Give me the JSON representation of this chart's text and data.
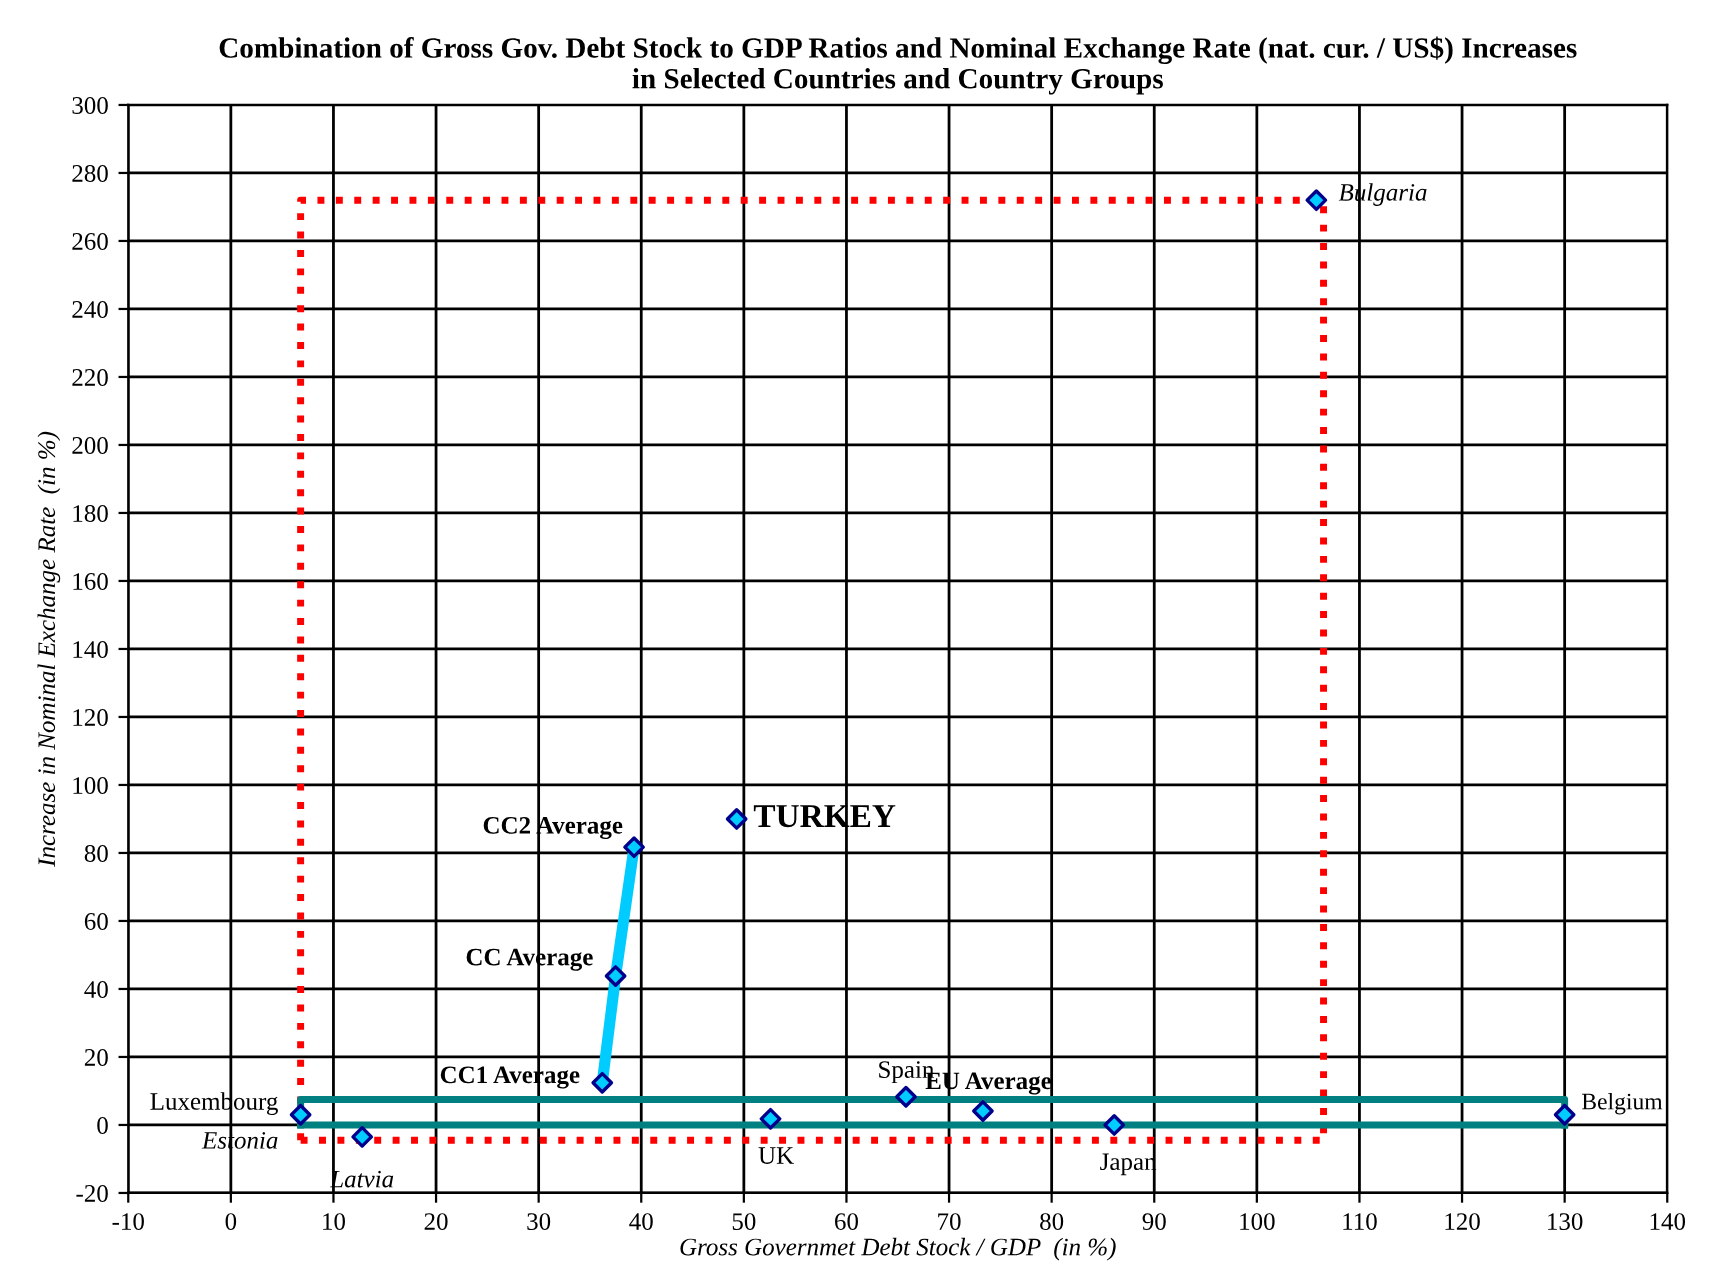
{
  "chart_data": {
    "type": "scatter",
    "title": "Combination of Gross Gov. Debt Stock to GDP Ratios and Nominal Exchange Rate (nat. cur. / US$) Increases\nin Selected Countries and Country Groups",
    "xlabel": "Gross Governmet Debt Stock / GDP  (in %)",
    "ylabel": "Increase in Nominal Exchange Rate  (in %)",
    "xlim": [
      -10,
      140
    ],
    "xticks": [
      -10,
      0,
      10,
      20,
      30,
      40,
      50,
      60,
      70,
      80,
      90,
      100,
      110,
      120,
      130,
      140
    ],
    "ylim": [
      -20,
      300
    ],
    "yticks": [
      -20,
      0,
      20,
      40,
      60,
      80,
      100,
      120,
      140,
      160,
      180,
      200,
      220,
      240,
      260,
      280,
      300
    ],
    "grid": true,
    "legend": false,
    "series": [
      {
        "type": "line",
        "color": "#ff0000",
        "line_style": "dotted",
        "marker": "none",
        "x": [
          6.8,
          6.8,
          106.5,
          106.5
        ],
        "values": [
          -4.5,
          272,
          272,
          -4.5
        ]
      },
      {
        "type": "line",
        "color": "#ff0000",
        "line_style": "dotted",
        "marker": "none",
        "x": [
          6.8,
          106.5
        ],
        "values": [
          -4.5,
          -4.5
        ]
      },
      {
        "type": "line",
        "color": "#008080",
        "line_style": "solid",
        "marker": "none",
        "x": [
          6.8,
          6.8,
          130,
          130
        ],
        "values": [
          0,
          7.5,
          7.5,
          0
        ]
      },
      {
        "type": "line",
        "color": "#008080",
        "line_style": "solid",
        "marker": "none",
        "x": [
          6.8,
          130
        ],
        "values": [
          0,
          0
        ]
      },
      {
        "type": "line",
        "color": "#00ccff",
        "line_style": "solid",
        "marker": "none",
        "x": [
          36.2,
          37.5,
          39.3
        ],
        "values": [
          12.4,
          43.8,
          81.7
        ]
      },
      {
        "color": "#00ccff",
        "marker": "diamond",
        "x": [
          6.8,
          12.8,
          36.2,
          37.5,
          39.3,
          49.3,
          52.6,
          65.8,
          73.3,
          86.1,
          130,
          105.8
        ],
        "values": [
          3,
          -3.5,
          12.4,
          43.8,
          81.7,
          90,
          1.8,
          8.3,
          4.1,
          0,
          3,
          272
        ]
      }
    ],
    "annotations": [
      {
        "text": "Luxembourg",
        "x": 6.8,
        "y": 3
      },
      {
        "text": "Estonia",
        "x": 6.8,
        "y": 3
      },
      {
        "text": "Latvia",
        "x": 12.8,
        "y": -3.5
      },
      {
        "text": "CC1 Average",
        "x": 36.2,
        "y": 12.4
      },
      {
        "text": "CC Average",
        "x": 37.5,
        "y": 43.8
      },
      {
        "text": "CC2 Average",
        "x": 39.3,
        "y": 81.7
      },
      {
        "text": "TURKEY",
        "x": 49.3,
        "y": 90
      },
      {
        "text": "UK",
        "x": 52.6,
        "y": 1.8
      },
      {
        "text": "Spain",
        "x": 65.8,
        "y": 8.3
      },
      {
        "text": "EU Average",
        "x": 73.3,
        "y": 4.1
      },
      {
        "text": "Japan",
        "x": 86.1,
        "y": 0
      },
      {
        "text": "Belgium",
        "x": 130,
        "y": 3
      },
      {
        "text": "Bulgaria",
        "x": 105.8,
        "y": 272
      }
    ]
  }
}
